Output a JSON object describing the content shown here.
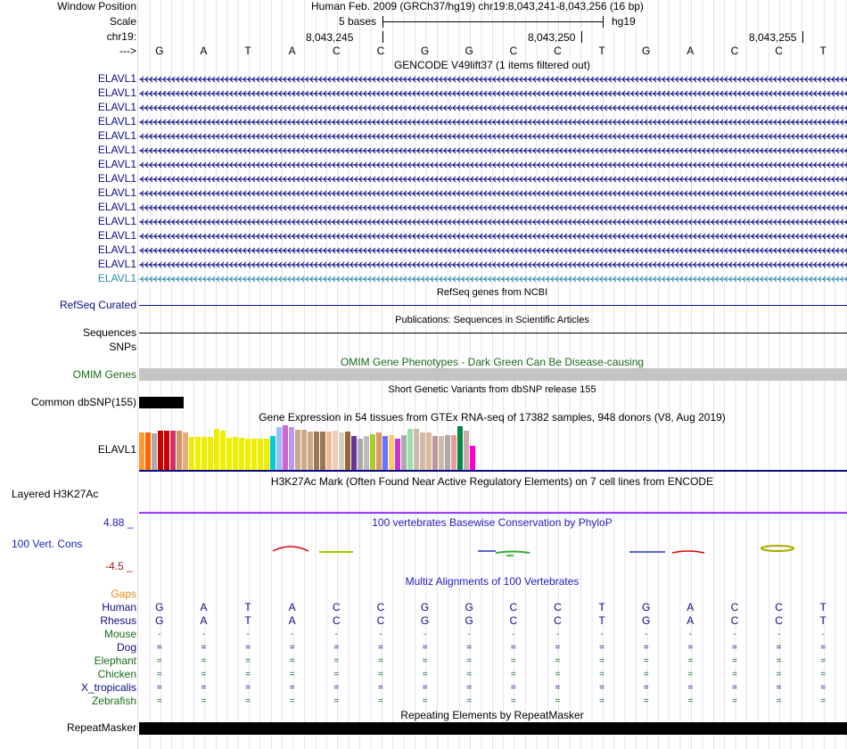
{
  "header": {
    "window_position_label": "Window Position",
    "window_position_value": "Human Feb. 2009 (GRCh37/hg19)   chr19:8,043,241-8,043,256 (16 bp)",
    "scale_label": "Scale",
    "scale_value": "5 bases",
    "scale_db": "hg19",
    "chrom_label": "chr19:",
    "coord1": "8,043,245",
    "coord2": "8,043,250",
    "coord3": "8,043,255",
    "strand_label": "--->"
  },
  "bases": [
    "G",
    "A",
    "T",
    "A",
    "C",
    "C",
    "G",
    "G",
    "C",
    "C",
    "T",
    "G",
    "A",
    "C",
    "C",
    "T"
  ],
  "gencode": {
    "title": "GENCODE V49lift37 (1 items filtered out)",
    "genes": [
      "ELAVL1",
      "ELAVL1",
      "ELAVL1",
      "ELAVL1",
      "ELAVL1",
      "ELAVL1",
      "ELAVL1",
      "ELAVL1",
      "ELAVL1",
      "ELAVL1",
      "ELAVL1",
      "ELAVL1",
      "ELAVL1",
      "ELAVL1",
      "ELAVL1"
    ],
    "gene_color": "#0b0b80",
    "last_gene_color": "#2e8aa5"
  },
  "refseq": {
    "title": "RefSeq genes from NCBI",
    "label": "RefSeq Curated"
  },
  "publications": {
    "title": "Publications: Sequences in Scientific Articles",
    "label": "Sequences"
  },
  "snps": {
    "label": "SNPs"
  },
  "omim": {
    "title": "OMIM Gene Phenotypes - Dark Green Can Be Disease-causing",
    "label": "OMIM Genes",
    "color": "#1a6b1a"
  },
  "dbsnp": {
    "title": "Short Genetic Variants from dbSNP release 155",
    "label": "Common dbSNP(155)"
  },
  "gtex": {
    "title": "Gene Expression in 54 tissues from GTEx RNA-seq of 17382 samples, 948 donors (V8, Aug 2019)",
    "label": "ELAVL1",
    "bar_values": [
      0.95,
      0.95,
      0.92,
      1.0,
      1.0,
      1.0,
      1.0,
      0.95,
      0.84,
      0.84,
      0.84,
      0.84,
      1.03,
      1.0,
      0.81,
      0.84,
      0.81,
      0.8,
      0.8,
      0.78,
      0.78,
      0.86,
      1.08,
      1.13,
      1.08,
      1.02,
      1.02,
      0.97,
      0.97,
      0.97,
      0.97,
      1.0,
      0.95,
      0.97,
      0.86,
      0.78,
      0.86,
      0.91,
      0.95,
      0.86,
      0.89,
      0.8,
      0.89,
      1.05,
      1.05,
      0.95,
      0.95,
      0.86,
      0.86,
      0.89,
      0.89,
      1.11,
      1.0,
      0.62
    ],
    "bar_colors": [
      "#ff9933",
      "#ff6600",
      "#aaaaaa",
      "#cc0000",
      "#cc0000",
      "#cc3366",
      "#cc9966",
      "#eeaa77",
      "#eeee00",
      "#eeee00",
      "#eeee00",
      "#eeee00",
      "#eeee00",
      "#eeee00",
      "#eeee00",
      "#eeee00",
      "#eeee00",
      "#eeee00",
      "#eeee00",
      "#eeee00",
      "#eeee00",
      "#00cccc",
      "#99bbff",
      "#cc66cc",
      "#bb99ee",
      "#ccaa88",
      "#ccaa88",
      "#ccaa88",
      "#997755",
      "#997755",
      "#eebb99",
      "#eeccbb",
      "#ddccbb",
      "#996633",
      "#663399",
      "#aaaaaa",
      "#bbbbbb",
      "#aacc33",
      "#dd9966",
      "#6677ff",
      "#ffcc66",
      "#cc33cc",
      "#aaaaaa",
      "#99ddaa",
      "#ccbbaa",
      "#ccbbaa",
      "#ddbb99",
      "#bb9999",
      "#ccbbaa",
      "#aaaaaa",
      "#ee9999",
      "#008844",
      "#ccaaaa",
      "#ff00cc"
    ]
  },
  "h3k27ac": {
    "title": "H3K27Ac Mark (Often Found Near Active Regulatory Elements) on 7 cell lines from ENCODE",
    "label": "Layered H3K27Ac"
  },
  "phylop": {
    "title": "100 vertebrates Basewise Conservation by PhyloP",
    "label": "100 Vert. Cons",
    "max": "4.88 _",
    "min": "-4.5 _",
    "title_color": "#1c1cbd",
    "max_color": "#1c1cbd",
    "min_color": "#a01c1c"
  },
  "multiz": {
    "title": "Multiz Alignments of 100 Vertebrates",
    "gaps_label": "Gaps",
    "gaps_color": "#e28a0f",
    "species": [
      {
        "name": "Human",
        "color": "#0b0b80",
        "seq": [
          "G",
          "A",
          "T",
          "A",
          "C",
          "C",
          "G",
          "G",
          "C",
          "C",
          "T",
          "G",
          "A",
          "C",
          "C",
          "T"
        ]
      },
      {
        "name": "Rhesus",
        "color": "#0b0b80",
        "seq": [
          "G",
          "A",
          "T",
          "A",
          "C",
          "C",
          "G",
          "G",
          "C",
          "C",
          "T",
          "G",
          "A",
          "C",
          "C",
          "T"
        ]
      },
      {
        "name": "Mouse",
        "color": "#1a6b1a",
        "seq": [
          "-",
          "-",
          "-",
          "-",
          "-",
          "-",
          "-",
          "-",
          "-",
          "-",
          "-",
          "-",
          "-",
          "-",
          "-",
          "-"
        ]
      },
      {
        "name": "Dog",
        "color": "#0b0b80",
        "seq": [
          "=",
          "=",
          "=",
          "=",
          "=",
          "=",
          "=",
          "=",
          "=",
          "=",
          "=",
          "=",
          "=",
          "=",
          "=",
          "="
        ]
      },
      {
        "name": "Elephant",
        "color": "#1a6b1a",
        "seq": [
          "=",
          "=",
          "=",
          "=",
          "=",
          "=",
          "=",
          "=",
          "=",
          "=",
          "=",
          "=",
          "=",
          "=",
          "=",
          "="
        ]
      },
      {
        "name": "Chicken",
        "color": "#1a6b1a",
        "seq": [
          "=",
          "=",
          "=",
          "=",
          "=",
          "=",
          "=",
          "=",
          "=",
          "=",
          "=",
          "=",
          "=",
          "=",
          "=",
          "="
        ]
      },
      {
        "name": "X_tropicalis",
        "color": "#0b0b80",
        "seq": [
          "=",
          "=",
          "=",
          "=",
          "=",
          "=",
          "=",
          "=",
          "=",
          "=",
          "=",
          "=",
          "=",
          "=",
          "=",
          "="
        ]
      },
      {
        "name": "Zebrafish",
        "color": "#1a6b1a",
        "seq": [
          "=",
          "=",
          "=",
          "=",
          "=",
          "=",
          "=",
          "=",
          "=",
          "=",
          "=",
          "=",
          "=",
          "=",
          "=",
          "="
        ]
      }
    ]
  },
  "repeatmasker": {
    "title": "Repeating Elements by RepeatMasker",
    "label": "RepeatMasker"
  }
}
